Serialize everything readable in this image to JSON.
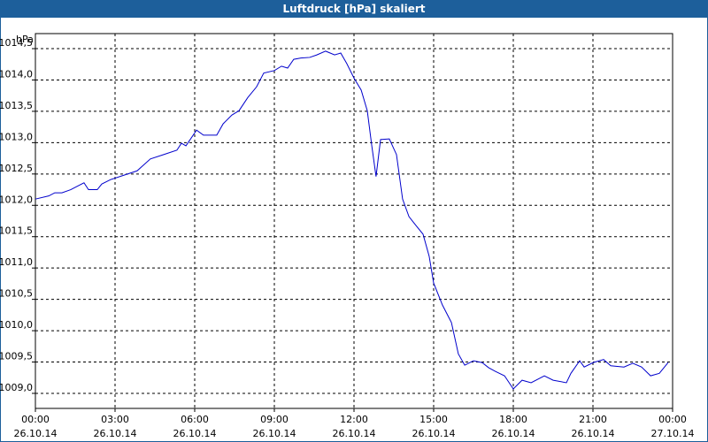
{
  "chart_data": {
    "type": "line",
    "title": "Luftdruck [hPa] skaliert",
    "ylabel": "hPa",
    "x": [
      0,
      0.5,
      0.73,
      1.0,
      1.33,
      1.83,
      2,
      2.33,
      2.5,
      2.83,
      3.33,
      3.83,
      4.33,
      4.83,
      5.33,
      5.5,
      5.67,
      6.07,
      6.33,
      6.83,
      7.07,
      7.4,
      7.67,
      8,
      8.33,
      8.6,
      9,
      9.27,
      9.5,
      9.73,
      10,
      10.33,
      10.6,
      10.93,
      11.27,
      11.5,
      11.73,
      12,
      12.27,
      12.5,
      12.67,
      12.83,
      13,
      13.33,
      13.6,
      13.83,
      14.07,
      14.33,
      14.6,
      14.83,
      15,
      15.33,
      15.67,
      15.93,
      16.17,
      16.5,
      16.83,
      17.07,
      17.33,
      17.67,
      18,
      18.33,
      18.67,
      19.17,
      19.5,
      20,
      20.17,
      20.5,
      20.67,
      21,
      21.4,
      21.67,
      22.17,
      22.5,
      22.83,
      23.17,
      23.5,
      23.83
    ],
    "series": [
      {
        "name": "Luftdruck",
        "color": "#0000cc",
        "values": [
          1012.1,
          1012.15,
          1012.2,
          1012.2,
          1012.25,
          1012.36,
          1012.25,
          1012.25,
          1012.34,
          1012.41,
          1012.48,
          1012.55,
          1012.74,
          1012.81,
          1012.88,
          1012.99,
          1012.95,
          1013.2,
          1013.12,
          1013.12,
          1013.3,
          1013.44,
          1013.51,
          1013.72,
          1013.89,
          1014.11,
          1014.15,
          1014.22,
          1014.19,
          1014.33,
          1014.35,
          1014.36,
          1014.4,
          1014.46,
          1014.4,
          1014.43,
          1014.26,
          1014.03,
          1013.84,
          1013.51,
          1012.95,
          1012.46,
          1013.05,
          1013.06,
          1012.81,
          1012.1,
          1011.82,
          1011.68,
          1011.54,
          1011.19,
          1010.76,
          1010.41,
          1010.13,
          1009.63,
          1009.45,
          1009.52,
          1009.49,
          1009.41,
          1009.35,
          1009.28,
          1009.07,
          1009.21,
          1009.17,
          1009.28,
          1009.21,
          1009.17,
          1009.32,
          1009.52,
          1009.42,
          1009.49,
          1009.54,
          1009.44,
          1009.42,
          1009.48,
          1009.42,
          1009.28,
          1009.32,
          1009.49
        ]
      }
    ],
    "xlim": [
      0,
      24
    ],
    "xticks": [
      {
        "value": 0,
        "label": "00:00"
      },
      {
        "value": 3,
        "label": "03:00"
      },
      {
        "value": 6,
        "label": "06:00"
      },
      {
        "value": 9,
        "label": "09:00"
      },
      {
        "value": 12,
        "label": "12:00"
      },
      {
        "value": 15,
        "label": "15:00"
      },
      {
        "value": 18,
        "label": "18:00"
      },
      {
        "value": 21,
        "label": "21:00"
      },
      {
        "value": 24,
        "label": "00:00"
      }
    ],
    "xtick_dates": [
      "26.10.14",
      "26.10.14",
      "26.10.14",
      "26.10.14",
      "26.10.14",
      "26.10.14",
      "26.10.14",
      "26.10.14",
      "27.10.14"
    ],
    "ylim": [
      1008.76,
      1014.74
    ],
    "yticks": [
      {
        "value": 1009,
        "label": "1009,0"
      },
      {
        "value": 1009.5,
        "label": "1009,5"
      },
      {
        "value": 1010,
        "label": "1010,0"
      },
      {
        "value": 1010.5,
        "label": "1010,5"
      },
      {
        "value": 1011,
        "label": "1011,0"
      },
      {
        "value": 1011.5,
        "label": "1011,5"
      },
      {
        "value": 1012,
        "label": "1012,0"
      },
      {
        "value": 1012.5,
        "label": "1012,5"
      },
      {
        "value": 1013,
        "label": "1013,0"
      },
      {
        "value": 1013.5,
        "label": "1013,5"
      },
      {
        "value": 1014,
        "label": "1014,0"
      },
      {
        "value": 1014.5,
        "label": "1014,5"
      }
    ],
    "grid": true
  }
}
